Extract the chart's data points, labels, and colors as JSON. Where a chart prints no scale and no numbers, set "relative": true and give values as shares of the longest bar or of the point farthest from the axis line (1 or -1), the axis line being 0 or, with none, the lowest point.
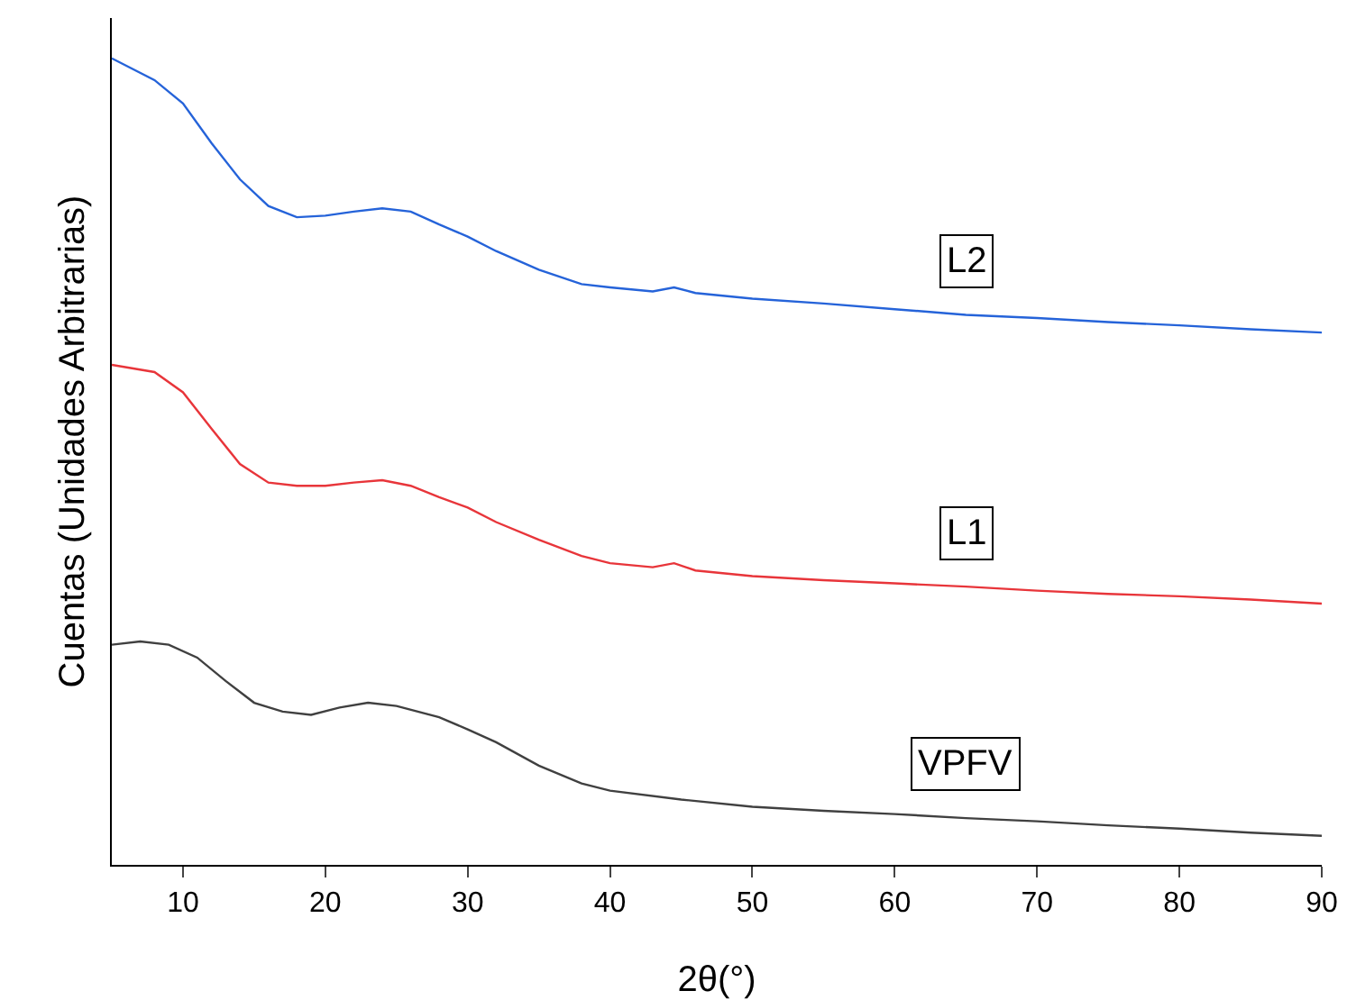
{
  "chart_data": {
    "type": "line",
    "relative": true,
    "xlabel": "2θ(°)",
    "ylabel": "Cuentas (Unidades Arbitrarias)",
    "xlim": [
      5,
      90
    ],
    "xticks": [
      10,
      20,
      30,
      40,
      50,
      60,
      70,
      80,
      90
    ],
    "grid": false,
    "legend": false,
    "marker": "none",
    "line_style": "solid",
    "series": [
      {
        "name": "L2",
        "color": "#2563d9",
        "x": [
          5,
          8,
          10,
          12,
          14,
          16,
          18,
          20,
          22,
          24,
          26,
          28,
          30,
          32,
          35,
          38,
          40,
          43,
          44.5,
          46,
          50,
          55,
          60,
          65,
          70,
          75,
          80,
          85,
          90
        ],
        "values": [
          1.0,
          0.973,
          0.944,
          0.895,
          0.85,
          0.817,
          0.803,
          0.805,
          0.81,
          0.814,
          0.81,
          0.794,
          0.779,
          0.761,
          0.738,
          0.72,
          0.716,
          0.711,
          0.716,
          0.709,
          0.702,
          0.696,
          0.689,
          0.682,
          0.678,
          0.673,
          0.669,
          0.664,
          0.66
        ]
      },
      {
        "name": "L1",
        "color": "#e8353a",
        "x": [
          5,
          8,
          10,
          12,
          14,
          16,
          18,
          20,
          22,
          24,
          26,
          28,
          30,
          32,
          35,
          38,
          40,
          43,
          44.5,
          46,
          50,
          55,
          60,
          65,
          70,
          75,
          80,
          85,
          90
        ],
        "values": [
          0.62,
          0.611,
          0.586,
          0.541,
          0.497,
          0.474,
          0.47,
          0.47,
          0.474,
          0.477,
          0.47,
          0.456,
          0.443,
          0.425,
          0.403,
          0.383,
          0.374,
          0.369,
          0.374,
          0.365,
          0.358,
          0.353,
          0.349,
          0.345,
          0.34,
          0.336,
          0.333,
          0.329,
          0.324
        ]
      },
      {
        "name": "VPFV",
        "color": "#404040",
        "x": [
          5,
          7,
          9,
          11,
          13,
          15,
          17,
          19,
          21,
          23,
          25,
          28,
          30,
          32,
          35,
          38,
          40,
          45,
          50,
          55,
          60,
          65,
          70,
          75,
          80,
          85,
          90
        ],
        "values": [
          0.273,
          0.277,
          0.273,
          0.257,
          0.228,
          0.201,
          0.19,
          0.186,
          0.195,
          0.201,
          0.197,
          0.183,
          0.168,
          0.152,
          0.123,
          0.101,
          0.092,
          0.081,
          0.072,
          0.067,
          0.063,
          0.058,
          0.054,
          0.049,
          0.045,
          0.04,
          0.036
        ]
      }
    ]
  }
}
